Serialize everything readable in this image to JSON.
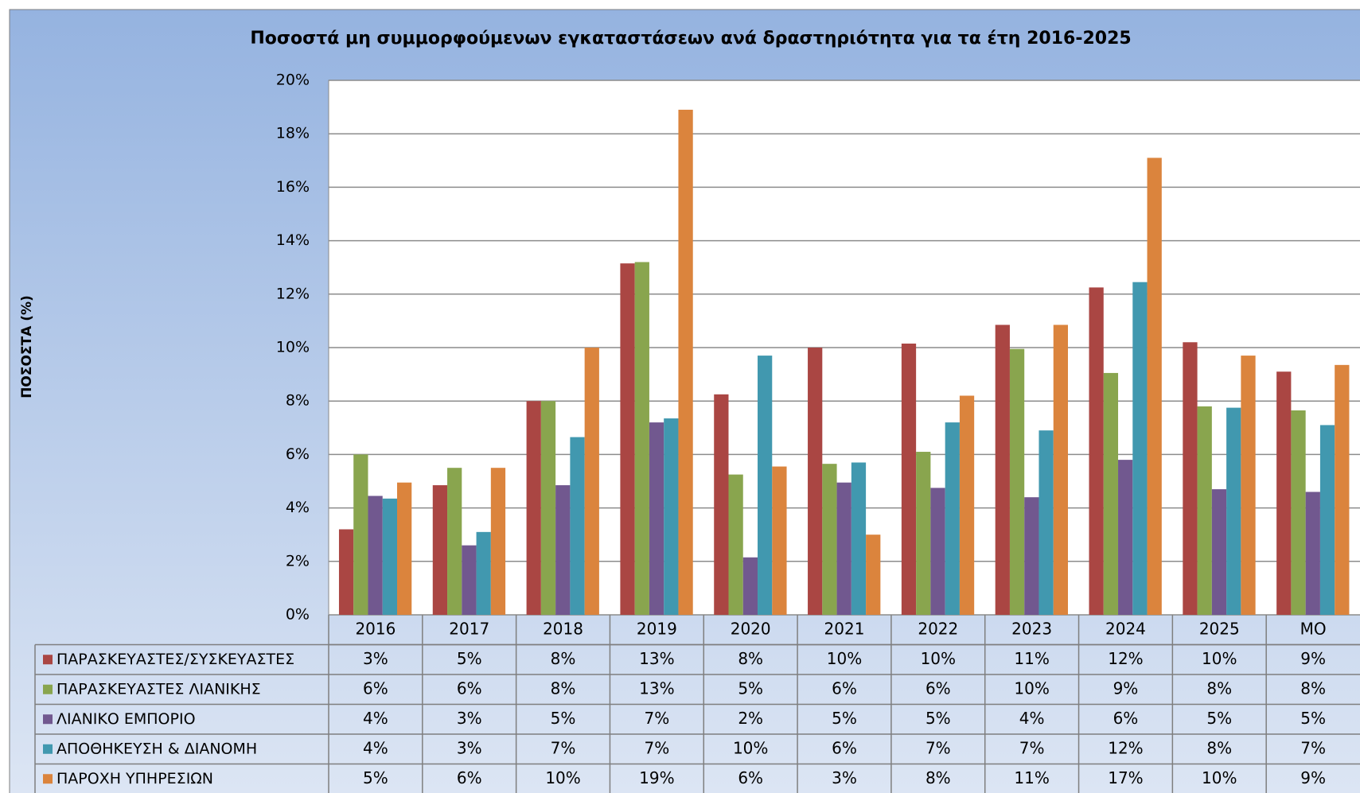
{
  "chart_data": {
    "type": "bar",
    "title": "Ποσοστά μη συμμορφούμενων εγκαταστάσεων ανά δραστηριότητα για τα έτη 2016-2025",
    "y_label": "ΠΟΣΟΣΤΑ (%)",
    "categories": [
      "2016",
      "2017",
      "2018",
      "2019",
      "2020",
      "2021",
      "2022",
      "2023",
      "2024",
      "2025",
      "ΜΟ"
    ],
    "ylim": [
      0,
      20
    ],
    "yticks": [
      {
        "value": 0,
        "label": "0%"
      },
      {
        "value": 2,
        "label": "2%"
      },
      {
        "value": 4,
        "label": "4%"
      },
      {
        "value": 6,
        "label": "6%"
      },
      {
        "value": 8,
        "label": "8%"
      },
      {
        "value": 10,
        "label": "10%"
      },
      {
        "value": 12,
        "label": "12%"
      },
      {
        "value": 14,
        "label": "14%"
      },
      {
        "value": 16,
        "label": "16%"
      },
      {
        "value": 18,
        "label": "18%"
      },
      {
        "value": 20,
        "label": "20%"
      }
    ],
    "grid": true,
    "series": [
      {
        "name": "ΠΑΡΑΣΚΕΥΑΣΤΕΣ/ΣΥΣΚΕΥΑΣΤΕΣ",
        "color": "#aa4643",
        "values": [
          3.2,
          4.85,
          8.0,
          13.15,
          8.25,
          10.0,
          10.15,
          10.85,
          12.25,
          10.2,
          9.1
        ],
        "value_labels": [
          "3%",
          "5%",
          "8%",
          "13%",
          "8%",
          "10%",
          "10%",
          "11%",
          "12%",
          "10%",
          "9%"
        ]
      },
      {
        "name": "ΠΑΡΑΣΚΕΥΑΣΤΕΣ ΛΙΑΝΙΚΗΣ",
        "color": "#89a54e",
        "values": [
          6.0,
          5.5,
          8.0,
          13.2,
          5.25,
          5.65,
          6.1,
          9.95,
          9.05,
          7.8,
          7.65
        ],
        "value_labels": [
          "6%",
          "6%",
          "8%",
          "13%",
          "5%",
          "6%",
          "6%",
          "10%",
          "9%",
          "8%",
          "8%"
        ]
      },
      {
        "name": "ΛΙΑΝΙΚΟ ΕΜΠΟΡΙΟ",
        "color": "#71588f",
        "values": [
          4.45,
          2.6,
          4.85,
          7.2,
          2.15,
          4.95,
          4.75,
          4.4,
          5.8,
          4.7,
          4.6
        ],
        "value_labels": [
          "4%",
          "3%",
          "5%",
          "7%",
          "2%",
          "5%",
          "5%",
          "4%",
          "6%",
          "5%",
          "5%"
        ]
      },
      {
        "name": "ΑΠΟΘΗΚΕΥΣΗ & ΔΙΑΝΟΜΗ",
        "color": "#4198af",
        "values": [
          4.35,
          3.1,
          6.65,
          7.35,
          9.7,
          5.7,
          7.2,
          6.9,
          12.45,
          7.75,
          7.1
        ],
        "value_labels": [
          "4%",
          "3%",
          "7%",
          "7%",
          "10%",
          "6%",
          "7%",
          "7%",
          "12%",
          "8%",
          "7%"
        ]
      },
      {
        "name": "ΠΑΡΟΧΗ ΥΠΗΡΕΣΙΩΝ",
        "color": "#db843d",
        "values": [
          4.95,
          5.5,
          10.0,
          18.9,
          5.55,
          3.0,
          8.2,
          10.85,
          17.1,
          9.7,
          9.35
        ],
        "value_labels": [
          "5%",
          "6%",
          "10%",
          "19%",
          "6%",
          "3%",
          "8%",
          "11%",
          "17%",
          "10%",
          "9%"
        ]
      }
    ]
  }
}
